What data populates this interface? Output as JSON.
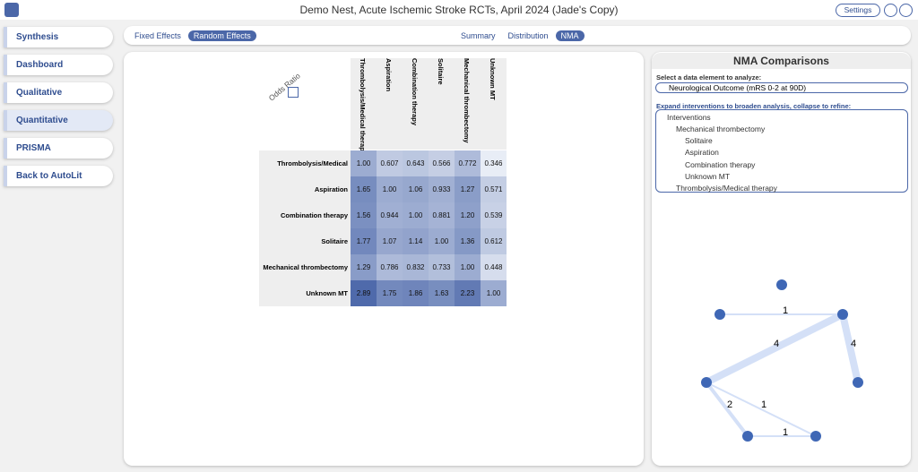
{
  "header": {
    "title": "Demo Nest, Acute Ischemic Stroke RCTs, April 2024 (Jade's Copy)",
    "settings": "Settings"
  },
  "sidebar": {
    "items": [
      "Synthesis",
      "Dashboard",
      "Qualitative",
      "Quantitative",
      "PRISMA",
      "Back to AutoLit"
    ]
  },
  "toolbar": {
    "effects": [
      "Fixed Effects",
      "Random Effects"
    ],
    "views": [
      "Summary",
      "Distribution",
      "NMA"
    ]
  },
  "matrix": {
    "label": "Odds Ratio",
    "columns": [
      "Thrombolysis/Medical therapy",
      "Aspiration",
      "Combination therapy",
      "Solitaire",
      "Mechanical thrombectomy",
      "Unknown MT"
    ],
    "rows": [
      {
        "label": "Thrombolysis/Medical therapy",
        "values": [
          "1.00",
          "0.607",
          "0.643",
          "0.566",
          "0.772",
          "0.346"
        ]
      },
      {
        "label": "Aspiration",
        "values": [
          "1.65",
          "1.00",
          "1.06",
          "0.933",
          "1.27",
          "0.571"
        ]
      },
      {
        "label": "Combination therapy",
        "values": [
          "1.56",
          "0.944",
          "1.00",
          "0.881",
          "1.20",
          "0.539"
        ]
      },
      {
        "label": "Solitaire",
        "values": [
          "1.77",
          "1.07",
          "1.14",
          "1.00",
          "1.36",
          "0.612"
        ]
      },
      {
        "label": "Mechanical thrombectomy",
        "values": [
          "1.29",
          "0.786",
          "0.832",
          "0.733",
          "1.00",
          "0.448"
        ]
      },
      {
        "label": "Unknown MT",
        "values": [
          "2.89",
          "1.75",
          "1.86",
          "1.63",
          "2.23",
          "1.00"
        ]
      }
    ]
  },
  "panel": {
    "title": "NMA Comparisons",
    "select_label": "Select a data element to analyze:",
    "select_value": "Neurological Outcome (mRS 0-2 at 90D)",
    "expand_label": "Expand interventions to broaden analysis, collapse to refine:",
    "tree": {
      "root": "Interventions",
      "group": "Mechanical thrombectomy",
      "children": [
        "Solitaire",
        "Aspiration",
        "Combination therapy",
        "Unknown MT"
      ],
      "other": "Thrombolysis/Medical therapy"
    }
  },
  "network": {
    "edge_labels": [
      1,
      4,
      4,
      2,
      1,
      1
    ]
  }
}
